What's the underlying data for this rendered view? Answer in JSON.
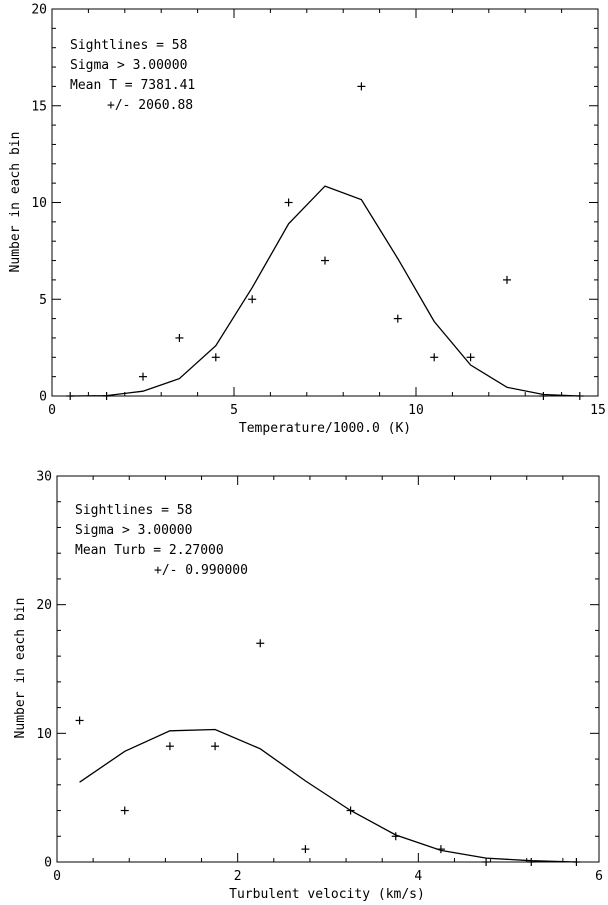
{
  "chart_data": [
    {
      "type": "scatter",
      "xlabel": "Temperature/1000.0 (K)",
      "ylabel": "Number in each bin",
      "xlim": [
        0,
        15
      ],
      "ylim": [
        0,
        20
      ],
      "x_ticks": [
        0,
        5,
        10,
        15
      ],
      "x_tick_labels": [
        "0",
        "5",
        "10",
        "15"
      ],
      "y_ticks": [
        0,
        5,
        10,
        15,
        20
      ],
      "y_tick_labels": [
        "0",
        "5",
        "10",
        "15",
        "20"
      ],
      "annotations": [
        "Sightlines =   58",
        "Sigma > 3.00000",
        "Mean T = 7381.41",
        "+/- 2060.88"
      ],
      "series": [
        {
          "style": "points",
          "marker": "+",
          "x": [
            0.5,
            1.5,
            2.5,
            3.5,
            4.5,
            5.5,
            6.5,
            7.5,
            8.5,
            9.5,
            10.5,
            11.5,
            12.5,
            13.5,
            14.5
          ],
          "y": [
            0,
            0,
            1,
            3,
            2,
            5,
            10,
            7,
            16,
            4,
            2,
            2,
            6,
            0,
            0
          ]
        },
        {
          "style": "line",
          "x": [
            0.5,
            1.5,
            2.5,
            3.5,
            4.5,
            5.5,
            6.5,
            7.5,
            8.5,
            9.5,
            10.5,
            11.5,
            12.5,
            13.5,
            14.5
          ],
          "y": [
            0.0,
            0.02,
            0.25,
            0.9,
            2.6,
            5.6,
            8.9,
            10.85,
            10.15,
            7.1,
            3.85,
            1.6,
            0.45,
            0.08,
            0.0
          ]
        }
      ]
    },
    {
      "type": "scatter",
      "xlabel": "Turbulent velocity (km/s)",
      "ylabel": "Number in each bin",
      "xlim": [
        0,
        6
      ],
      "ylim": [
        0,
        30
      ],
      "x_ticks": [
        0,
        2,
        4,
        6
      ],
      "x_tick_labels": [
        "0",
        "2",
        "4",
        "6"
      ],
      "y_ticks": [
        0,
        10,
        20,
        30
      ],
      "y_tick_labels": [
        "0",
        "10",
        "20",
        "30"
      ],
      "annotations": [
        "Sightlines =   58",
        "Sigma > 3.00000",
        "Mean Turb =     2.27000",
        "+/- 0.990000"
      ],
      "series": [
        {
          "style": "points",
          "marker": "+",
          "x": [
            0.25,
            0.75,
            1.25,
            1.75,
            2.25,
            2.75,
            3.25,
            3.75,
            4.25,
            4.75,
            5.25,
            5.75
          ],
          "y": [
            11,
            4,
            9,
            9,
            17,
            1,
            4,
            2,
            1,
            0,
            0,
            0
          ]
        },
        {
          "style": "line",
          "x": [
            0.25,
            0.75,
            1.25,
            1.75,
            2.25,
            2.75,
            3.25,
            3.75,
            4.25,
            4.75,
            5.25,
            5.75
          ],
          "y": [
            6.2,
            8.6,
            10.2,
            10.3,
            8.8,
            6.3,
            4.0,
            2.1,
            0.9,
            0.3,
            0.1,
            0.0
          ]
        }
      ]
    }
  ]
}
